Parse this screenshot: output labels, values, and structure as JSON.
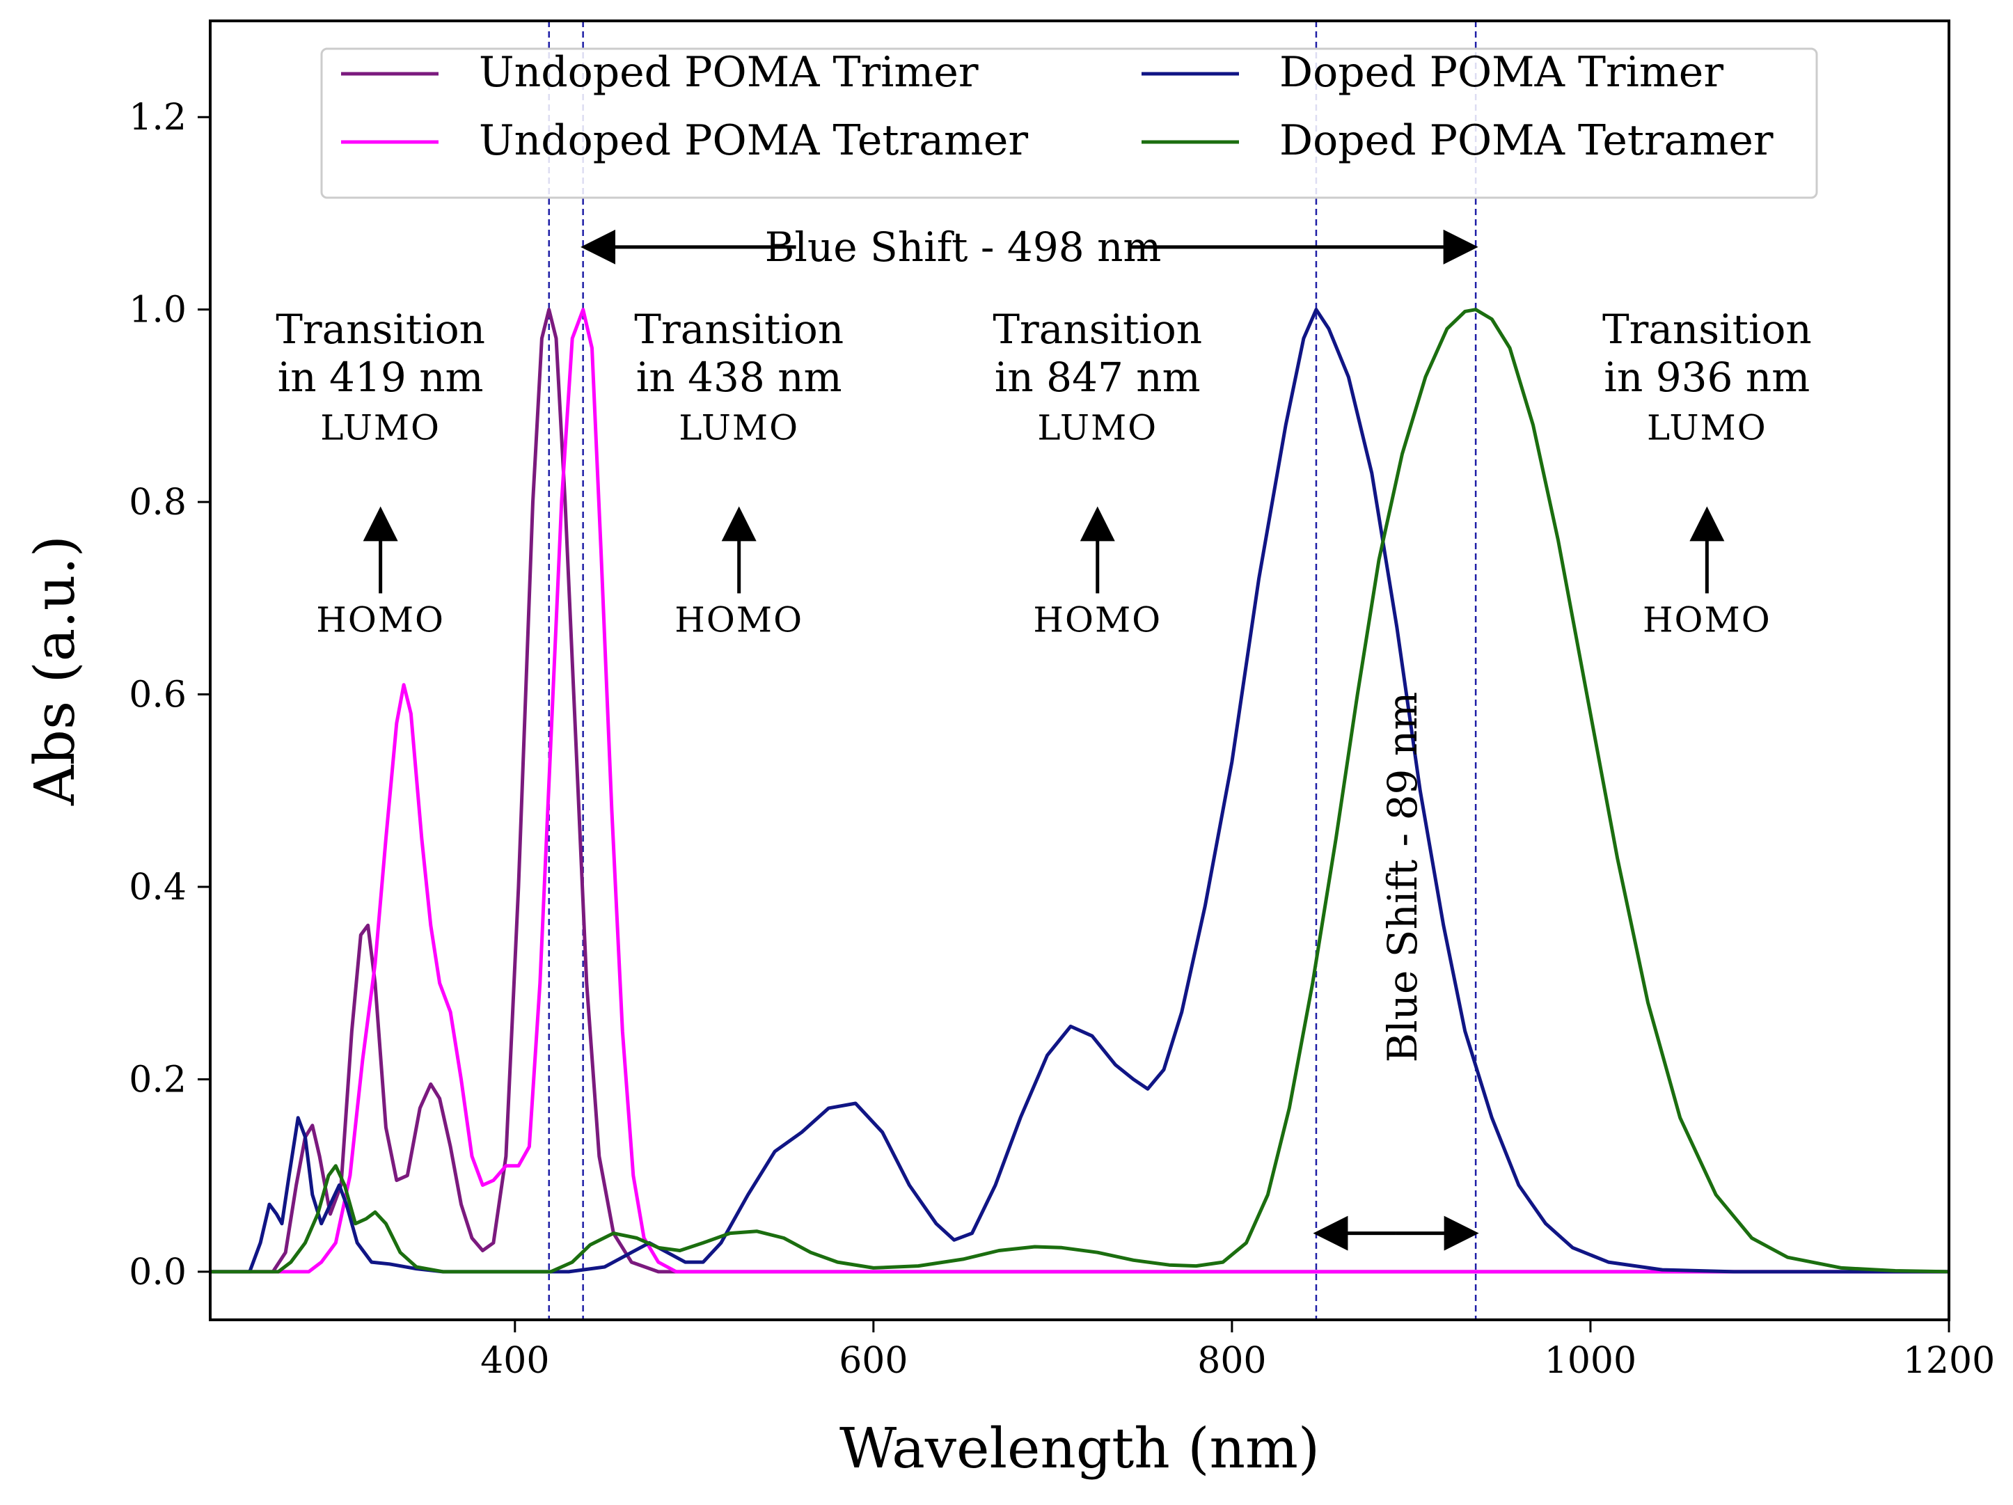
{
  "chart_data": {
    "type": "line",
    "xlabel": "Wavelength (nm)",
    "ylabel": "Abs (a.u.)",
    "xlim": [
      230,
      1200
    ],
    "ylim": [
      -0.05,
      1.3
    ],
    "xticks": [
      400,
      600,
      800,
      1000,
      1200
    ],
    "yticks": [
      0.0,
      0.2,
      0.4,
      0.6,
      0.8,
      1.0,
      1.2
    ],
    "grid": false,
    "legend": {
      "position": "top-center",
      "columns": 2
    },
    "series": [
      {
        "name": "Undoped POMA Trimer",
        "color": "#7b1a7e",
        "points": [
          [
            230,
            0
          ],
          [
            265,
            0
          ],
          [
            272,
            0.02
          ],
          [
            278,
            0.09
          ],
          [
            283,
            0.14
          ],
          [
            287,
            0.152
          ],
          [
            291,
            0.12
          ],
          [
            297,
            0.06
          ],
          [
            303,
            0.09
          ],
          [
            309,
            0.25
          ],
          [
            314,
            0.35
          ],
          [
            318,
            0.36
          ],
          [
            322,
            0.3
          ],
          [
            328,
            0.15
          ],
          [
            334,
            0.095
          ],
          [
            340,
            0.1
          ],
          [
            347,
            0.17
          ],
          [
            353,
            0.195
          ],
          [
            358,
            0.18
          ],
          [
            364,
            0.13
          ],
          [
            370,
            0.07
          ],
          [
            376,
            0.035
          ],
          [
            382,
            0.022
          ],
          [
            388,
            0.03
          ],
          [
            395,
            0.12
          ],
          [
            402,
            0.4
          ],
          [
            410,
            0.8
          ],
          [
            415,
            0.97
          ],
          [
            419,
            1.0
          ],
          [
            423,
            0.97
          ],
          [
            428,
            0.8
          ],
          [
            434,
            0.55
          ],
          [
            440,
            0.3
          ],
          [
            447,
            0.12
          ],
          [
            455,
            0.04
          ],
          [
            465,
            0.01
          ],
          [
            480,
            0
          ],
          [
            1200,
            0
          ]
        ]
      },
      {
        "name": "Undoped POMA Tetramer",
        "color": "#ff00ff",
        "points": [
          [
            230,
            0
          ],
          [
            285,
            0
          ],
          [
            292,
            0.01
          ],
          [
            300,
            0.03
          ],
          [
            308,
            0.1
          ],
          [
            315,
            0.22
          ],
          [
            322,
            0.32
          ],
          [
            328,
            0.45
          ],
          [
            334,
            0.57
          ],
          [
            338,
            0.61
          ],
          [
            342,
            0.58
          ],
          [
            348,
            0.45
          ],
          [
            353,
            0.36
          ],
          [
            358,
            0.3
          ],
          [
            364,
            0.27
          ],
          [
            370,
            0.2
          ],
          [
            376,
            0.12
          ],
          [
            382,
            0.09
          ],
          [
            388,
            0.095
          ],
          [
            395,
            0.11
          ],
          [
            402,
            0.11
          ],
          [
            408,
            0.13
          ],
          [
            414,
            0.3
          ],
          [
            420,
            0.55
          ],
          [
            426,
            0.8
          ],
          [
            432,
            0.97
          ],
          [
            438,
            1.0
          ],
          [
            443,
            0.96
          ],
          [
            448,
            0.75
          ],
          [
            454,
            0.48
          ],
          [
            460,
            0.25
          ],
          [
            466,
            0.1
          ],
          [
            472,
            0.035
          ],
          [
            480,
            0.01
          ],
          [
            490,
            0
          ],
          [
            1200,
            0
          ]
        ]
      },
      {
        "name": "Doped POMA Trimer",
        "color": "#101585",
        "points": [
          [
            230,
            0
          ],
          [
            252,
            0
          ],
          [
            258,
            0.03
          ],
          [
            263,
            0.07
          ],
          [
            267,
            0.06
          ],
          [
            270,
            0.05
          ],
          [
            274,
            0.1
          ],
          [
            279,
            0.16
          ],
          [
            283,
            0.14
          ],
          [
            287,
            0.08
          ],
          [
            292,
            0.05
          ],
          [
            297,
            0.07
          ],
          [
            302,
            0.09
          ],
          [
            306,
            0.07
          ],
          [
            312,
            0.03
          ],
          [
            320,
            0.01
          ],
          [
            330,
            0.008
          ],
          [
            345,
            0.003
          ],
          [
            360,
            0
          ],
          [
            430,
            0
          ],
          [
            450,
            0.005
          ],
          [
            465,
            0.02
          ],
          [
            475,
            0.03
          ],
          [
            485,
            0.02
          ],
          [
            495,
            0.01
          ],
          [
            505,
            0.01
          ],
          [
            515,
            0.03
          ],
          [
            530,
            0.08
          ],
          [
            545,
            0.125
          ],
          [
            560,
            0.145
          ],
          [
            575,
            0.17
          ],
          [
            590,
            0.175
          ],
          [
            605,
            0.145
          ],
          [
            620,
            0.09
          ],
          [
            635,
            0.05
          ],
          [
            645,
            0.033
          ],
          [
            655,
            0.04
          ],
          [
            668,
            0.09
          ],
          [
            682,
            0.16
          ],
          [
            697,
            0.225
          ],
          [
            710,
            0.255
          ],
          [
            722,
            0.245
          ],
          [
            735,
            0.215
          ],
          [
            745,
            0.2
          ],
          [
            753,
            0.19
          ],
          [
            762,
            0.21
          ],
          [
            772,
            0.27
          ],
          [
            785,
            0.38
          ],
          [
            800,
            0.53
          ],
          [
            815,
            0.72
          ],
          [
            830,
            0.88
          ],
          [
            840,
            0.97
          ],
          [
            847,
            1.0
          ],
          [
            854,
            0.98
          ],
          [
            865,
            0.93
          ],
          [
            878,
            0.83
          ],
          [
            892,
            0.67
          ],
          [
            905,
            0.5
          ],
          [
            918,
            0.36
          ],
          [
            930,
            0.25
          ],
          [
            945,
            0.16
          ],
          [
            960,
            0.09
          ],
          [
            975,
            0.05
          ],
          [
            990,
            0.025
          ],
          [
            1010,
            0.01
          ],
          [
            1040,
            0.002
          ],
          [
            1080,
            0
          ],
          [
            1200,
            0
          ]
        ]
      },
      {
        "name": "Doped POMA Tetramer",
        "color": "#1b6e0f",
        "points": [
          [
            230,
            0
          ],
          [
            268,
            0
          ],
          [
            275,
            0.01
          ],
          [
            283,
            0.03
          ],
          [
            290,
            0.06
          ],
          [
            296,
            0.1
          ],
          [
            300,
            0.11
          ],
          [
            305,
            0.09
          ],
          [
            311,
            0.05
          ],
          [
            317,
            0.055
          ],
          [
            322,
            0.062
          ],
          [
            328,
            0.05
          ],
          [
            336,
            0.02
          ],
          [
            345,
            0.005
          ],
          [
            360,
            0
          ],
          [
            420,
            0
          ],
          [
            432,
            0.01
          ],
          [
            442,
            0.028
          ],
          [
            455,
            0.04
          ],
          [
            468,
            0.035
          ],
          [
            480,
            0.025
          ],
          [
            492,
            0.022
          ],
          [
            505,
            0.03
          ],
          [
            520,
            0.04
          ],
          [
            535,
            0.042
          ],
          [
            550,
            0.035
          ],
          [
            565,
            0.02
          ],
          [
            580,
            0.01
          ],
          [
            600,
            0.004
          ],
          [
            625,
            0.006
          ],
          [
            650,
            0.013
          ],
          [
            670,
            0.022
          ],
          [
            690,
            0.026
          ],
          [
            705,
            0.025
          ],
          [
            725,
            0.02
          ],
          [
            745,
            0.012
          ],
          [
            765,
            0.007
          ],
          [
            780,
            0.006
          ],
          [
            795,
            0.01
          ],
          [
            808,
            0.03
          ],
          [
            820,
            0.08
          ],
          [
            832,
            0.17
          ],
          [
            845,
            0.3
          ],
          [
            858,
            0.45
          ],
          [
            870,
            0.6
          ],
          [
            882,
            0.74
          ],
          [
            895,
            0.85
          ],
          [
            908,
            0.93
          ],
          [
            920,
            0.98
          ],
          [
            930,
            0.998
          ],
          [
            936,
            1.0
          ],
          [
            945,
            0.99
          ],
          [
            955,
            0.96
          ],
          [
            968,
            0.88
          ],
          [
            982,
            0.76
          ],
          [
            998,
            0.6
          ],
          [
            1015,
            0.43
          ],
          [
            1032,
            0.28
          ],
          [
            1050,
            0.16
          ],
          [
            1070,
            0.08
          ],
          [
            1090,
            0.035
          ],
          [
            1110,
            0.015
          ],
          [
            1140,
            0.004
          ],
          [
            1170,
            0.001
          ],
          [
            1200,
            0
          ]
        ]
      }
    ],
    "reference_lines": [
      419,
      438,
      847,
      936
    ],
    "annotations": [
      {
        "title": "Transition",
        "detail": "in 419 nm",
        "upper": "LUMO",
        "lower": "HOMO",
        "x": 325,
        "y_title": 0.965,
        "y_detail": 0.915,
        "y_upper": 0.865,
        "y_lower": 0.665,
        "arrow": [
          0.79,
          0.705
        ]
      },
      {
        "title": "Transition",
        "detail": "in 438 nm",
        "upper": "LUMO",
        "lower": "HOMO",
        "x": 525,
        "y_title": 0.965,
        "y_detail": 0.915,
        "y_upper": 0.865,
        "y_lower": 0.665,
        "arrow": [
          0.79,
          0.705
        ]
      },
      {
        "title": "Transition",
        "detail": "in 847 nm",
        "upper": "LUMO",
        "lower": "HOMO",
        "x": 725,
        "y_title": 0.965,
        "y_detail": 0.915,
        "y_upper": 0.865,
        "y_lower": 0.665,
        "arrow": [
          0.79,
          0.705
        ]
      },
      {
        "title": "Transition",
        "detail": "in 936 nm",
        "upper": "LUMO",
        "lower": "HOMO",
        "x": 1065,
        "y_title": 0.965,
        "y_detail": 0.915,
        "y_upper": 0.865,
        "y_lower": 0.665,
        "arrow": [
          0.79,
          0.705
        ]
      }
    ],
    "shifts": [
      {
        "label": "Blue Shift - 498 nm",
        "x_from": 438,
        "x_to": 936,
        "y": 1.065,
        "x_label": 650,
        "orientation": "horizontal"
      },
      {
        "label": "Blue Shift - 89 nm",
        "x_from": 847,
        "x_to": 936,
        "y": 0.04,
        "x_label": 896,
        "y_label": 0.41,
        "orientation": "vertical-label"
      }
    ]
  },
  "colors": {
    "axes": "#000000",
    "reference_line": "#1f1fa6",
    "legend_border": "#cccccc"
  }
}
